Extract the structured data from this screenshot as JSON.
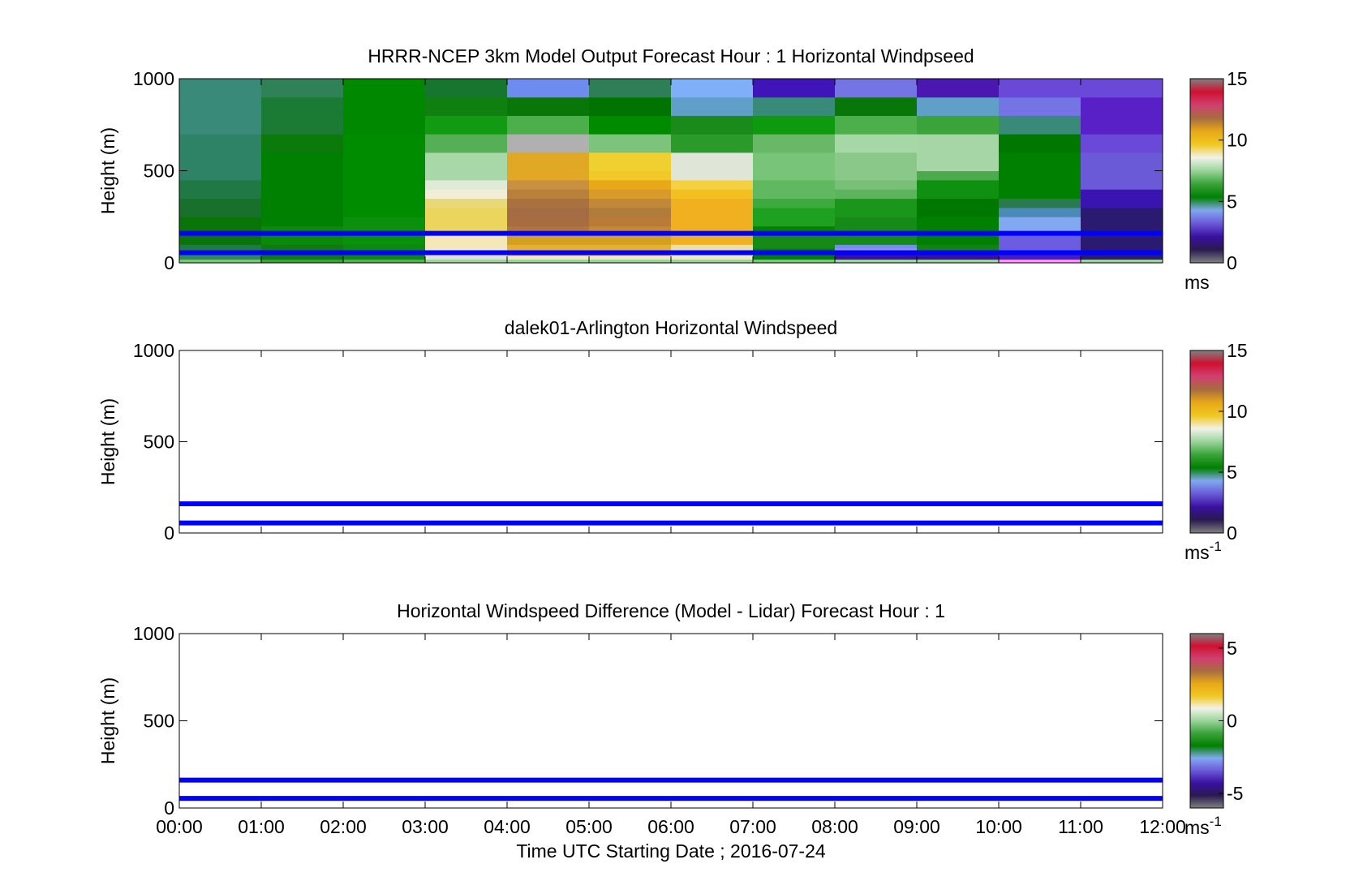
{
  "figure": {
    "xtick_labels": [
      "00:00",
      "01:00",
      "02:00",
      "03:00",
      "04:00",
      "05:00",
      "06:00",
      "07:00",
      "08:00",
      "09:00",
      "10:00",
      "11:00",
      "12:00"
    ],
    "xlabel": "Time UTC  Starting Date ; 2016-07-24"
  },
  "chart_data": [
    {
      "type": "heatmap",
      "title": "HRRR-NCEP 3km Model Output   Forecast Hour : 1 Horizontal Windpseed",
      "ylabel": "Height (m)",
      "ytick_labels": [
        "0",
        "500",
        "1000"
      ],
      "ylim": [
        0,
        1000
      ],
      "xlim_hours": [
        0,
        12
      ],
      "colorbar": {
        "ticks": [
          "0",
          "5",
          "10",
          "15"
        ],
        "unit": "ms",
        "range": [
          0,
          15
        ]
      },
      "level_boundaries_m": [
        0,
        20,
        40,
        60,
        80,
        100,
        150,
        200,
        250,
        300,
        350,
        400,
        450,
        500,
        600,
        700,
        800,
        900,
        1000
      ],
      "hours": [
        0,
        1,
        2,
        3,
        4,
        5,
        6,
        7,
        8,
        9,
        10,
        11
      ],
      "colors_by_hour": [
        [
          "#78c878",
          "#2e8b57",
          "#2e8b57",
          "#1e7c3f",
          "#1e7c3f",
          "#097509",
          "#097509",
          "#097509",
          "#18702c",
          "#18702c",
          "#207845",
          "#207845",
          "#2e8266",
          "#2e8266",
          "#2e8266",
          "#3a8a7a",
          "#3a8a7a",
          "#3a8a7a"
        ],
        [
          "#3aa33a",
          "#0f7a0f",
          "#0f7a0f",
          "#0f7a0f",
          "#0f7a0f",
          "#0a8a0a",
          "#0a8a0a",
          "#008000",
          "#008000",
          "#008000",
          "#008000",
          "#008000",
          "#008000",
          "#008000",
          "#0a7a0a",
          "#1b7a34",
          "#1b7a34",
          "#2e8255"
        ],
        [
          "#55b055",
          "#0a8a0a",
          "#0a8a0a",
          "#0a8a0a",
          "#0a8a0a",
          "#0b900b",
          "#0b900b",
          "#0b900b",
          "#008c00",
          "#008c00",
          "#008c00",
          "#008c00",
          "#008c00",
          "#008c00",
          "#008c00",
          "#008800",
          "#008800",
          "#008800"
        ],
        [
          "#9ad49a",
          "#e0e0e0",
          "#f2e8c4",
          "#f2e8c4",
          "#f5e8b8",
          "#f5e8b8",
          "#ebd55c",
          "#ebd55c",
          "#ebd55c",
          "#e8d878",
          "#f2eed6",
          "#dfead8",
          "#a8d8a8",
          "#a8d8a8",
          "#55b055",
          "#129a12",
          "#0f800f",
          "#16752e"
        ],
        [
          "#9ad49a",
          "#f2e8c4",
          "#e8b030",
          "#e8b030",
          "#e8b030",
          "#d4a020",
          "#b07838",
          "#a86c40",
          "#a46c44",
          "#aa7040",
          "#b88038",
          "#c89040",
          "#e0a824",
          "#e0a824",
          "#b0b0b0",
          "#4caf4c",
          "#087608",
          "#6e8cf0"
        ],
        [
          "#9ad49a",
          "#f2e8c4",
          "#e8b030",
          "#e8b030",
          "#e8b030",
          "#d4a020",
          "#c88830",
          "#b87c38",
          "#b07c3c",
          "#c08838",
          "#d89a28",
          "#e8a818",
          "#f0c828",
          "#f0d030",
          "#7cc47c",
          "#008a00",
          "#007300",
          "#2e7f58"
        ],
        [
          "#9ad49a",
          "#f2e8c4",
          "#f5e8b8",
          "#f0e0a0",
          "#f0e0a0",
          "#f0b020",
          "#f0b020",
          "#f0b020",
          "#f0b020",
          "#f0b020",
          "#f2c020",
          "#f5d040",
          "#dfe6d8",
          "#dfe6d8",
          "#2a9a2a",
          "#1a8a1a",
          "#5f9fc8",
          "#7fb0f7"
        ],
        [
          "#78c878",
          "#008000",
          "#008000",
          "#008000",
          "#168a16",
          "#168a16",
          "#008400",
          "#20a020",
          "#20a020",
          "#3caa3c",
          "#60b860",
          "#60b860",
          "#78c478",
          "#78c478",
          "#68b868",
          "#0e9a0e",
          "#3a8a7a",
          "#3f14b8"
        ],
        [
          "#9ad49a",
          "#3a10a0",
          "#3a10a0",
          "#a090e0",
          "#7090f0",
          "#168a16",
          "#168a16",
          "#168a16",
          "#1a961a",
          "#1a961a",
          "#5cb45c",
          "#78c078",
          "#8ac88a",
          "#8ac88a",
          "#a6d8a6",
          "#4caf4c",
          "#097609",
          "#7474e4"
        ],
        [
          "#9ad49a",
          "#3a10a0",
          "#3a10a0",
          "#128212",
          "#128212",
          "#008000",
          "#008000",
          "#008000",
          "#007800",
          "#007800",
          "#109010",
          "#109010",
          "#4ca94c",
          "#a6d6a6",
          "#a6d6a6",
          "#3aa33a",
          "#5f9fc8",
          "#4a17b0"
        ],
        [
          "#ff90ff",
          "#4020c0",
          "#4020c0",
          "#6b5ce0",
          "#6b5ce0",
          "#6b5ce0",
          "#82a8f0",
          "#82a8f0",
          "#4a8ab8",
          "#2a7a50",
          "#008000",
          "#008000",
          "#008000",
          "#008000",
          "#007800",
          "#3a8a7a",
          "#7474e4",
          "#6a48d8"
        ],
        [
          "#9ad49a",
          "#2a1a70",
          "#2a1a70",
          "#2a1a70",
          "#2a1a70",
          "#2a1a70",
          "#2a1a70",
          "#2a1a70",
          "#2a1a70",
          "#3a14b0",
          "#3a14b0",
          "#6a5ad8",
          "#6a5ad8",
          "#6a5ad8",
          "#6a48d8",
          "#5a20c8",
          "#5a20c8",
          "#6a48d8"
        ]
      ],
      "reference_lines_m": [
        55,
        160
      ],
      "reference_line_color": "#0000ff"
    },
    {
      "type": "heatmap",
      "title": "dalek01-Arlington  Horizontal Windspeed",
      "ylabel": "Height (m)",
      "ytick_labels": [
        "0",
        "500",
        "1000"
      ],
      "ylim": [
        0,
        1000
      ],
      "xlim_hours": [
        0,
        12
      ],
      "colorbar": {
        "ticks": [
          "0",
          "5",
          "10",
          "15"
        ],
        "unit": "ms",
        "unit_exponent": "-1",
        "range": [
          0,
          15
        ]
      },
      "reference_lines_m": [
        55,
        160
      ],
      "reference_line_color": "#0000ff"
    },
    {
      "type": "heatmap",
      "title": "Horizontal Windspeed Difference (Model - Lidar) Forecast Hour : 1",
      "ylabel": "Height (m)",
      "ytick_labels": [
        "0",
        "500",
        "1000"
      ],
      "ylim": [
        0,
        1000
      ],
      "xlim_hours": [
        0,
        12
      ],
      "colorbar": {
        "ticks": [
          "-5",
          "0",
          "5"
        ],
        "tick_values": [
          -5,
          0,
          5
        ],
        "unit": "ms",
        "unit_exponent": "-1",
        "range": [
          -6,
          6
        ]
      },
      "reference_lines_m": [
        55,
        160
      ],
      "reference_line_color": "#0000ff"
    }
  ],
  "colormap": [
    "#808080",
    "#2a1a50",
    "#3a10a0",
    "#6a5ad8",
    "#82a8f0",
    "#008000",
    "#3aa33a",
    "#9ad49a",
    "#f2f2e8",
    "#f0c820",
    "#e8a818",
    "#a86c40",
    "#d04070",
    "#d01030",
    "#808080"
  ]
}
